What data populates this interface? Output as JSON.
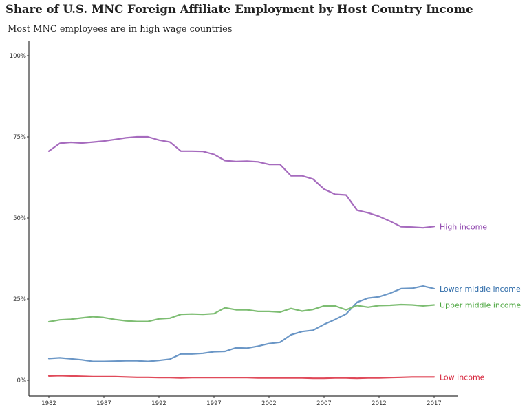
{
  "chart_data": {
    "type": "line",
    "title": "Share of U.S. MNC Foreign Affiliate Employment by Host Country Income",
    "subtitle": "Most MNC employees are in high wage countries",
    "xlabel": "",
    "ylabel": "",
    "xlim": [
      1982,
      2017
    ],
    "ylim": [
      0,
      1
    ],
    "x_ticks": [
      1982,
      1987,
      1992,
      1997,
      2002,
      2007,
      2012,
      2017
    ],
    "y_ticks": [
      0,
      0.25,
      0.5,
      0.75,
      1.0
    ],
    "y_tick_labels": [
      "0%",
      "25%",
      "50%",
      "75%",
      "100%"
    ],
    "grid": false,
    "legend": "direct labels at line ends",
    "x": [
      1982,
      1983,
      1984,
      1985,
      1986,
      1987,
      1988,
      1989,
      1990,
      1991,
      1992,
      1993,
      1994,
      1995,
      1996,
      1997,
      1998,
      1999,
      2000,
      2001,
      2002,
      2003,
      2004,
      2005,
      2006,
      2007,
      2008,
      2009,
      2010,
      2011,
      2012,
      2013,
      2014,
      2015,
      2016,
      2017
    ],
    "series": [
      {
        "name": "High income",
        "color": "#A66BBE",
        "label_color": "#8E44AD",
        "values": [
          0.706,
          0.73,
          0.733,
          0.731,
          0.734,
          0.737,
          0.742,
          0.747,
          0.75,
          0.75,
          0.74,
          0.734,
          0.706,
          0.706,
          0.705,
          0.696,
          0.677,
          0.674,
          0.675,
          0.673,
          0.665,
          0.665,
          0.63,
          0.63,
          0.62,
          0.589,
          0.573,
          0.571,
          0.524,
          0.516,
          0.505,
          0.49,
          0.473,
          0.472,
          0.47,
          0.474
        ]
      },
      {
        "name": "Lower middle income",
        "color": "#6A96C6",
        "label_color": "#2E6BA8",
        "values": [
          0.067,
          0.069,
          0.066,
          0.063,
          0.058,
          0.058,
          0.059,
          0.06,
          0.06,
          0.058,
          0.061,
          0.065,
          0.081,
          0.081,
          0.083,
          0.088,
          0.089,
          0.1,
          0.099,
          0.105,
          0.113,
          0.117,
          0.14,
          0.15,
          0.154,
          0.172,
          0.187,
          0.204,
          0.24,
          0.253,
          0.257,
          0.268,
          0.282,
          0.283,
          0.29,
          0.282
        ]
      },
      {
        "name": "Upper middle income",
        "color": "#7DBD72",
        "label_color": "#4CA63F",
        "values": [
          0.18,
          0.186,
          0.188,
          0.192,
          0.196,
          0.193,
          0.187,
          0.183,
          0.181,
          0.181,
          0.189,
          0.191,
          0.203,
          0.204,
          0.203,
          0.205,
          0.223,
          0.217,
          0.217,
          0.212,
          0.212,
          0.21,
          0.221,
          0.213,
          0.218,
          0.229,
          0.229,
          0.217,
          0.23,
          0.225,
          0.23,
          0.231,
          0.233,
          0.232,
          0.229,
          0.232
        ]
      },
      {
        "name": "Low income",
        "color": "#E04A5A",
        "label_color": "#D7263D",
        "values": [
          0.013,
          0.014,
          0.013,
          0.012,
          0.011,
          0.011,
          0.011,
          0.01,
          0.009,
          0.009,
          0.008,
          0.008,
          0.007,
          0.008,
          0.008,
          0.008,
          0.008,
          0.008,
          0.008,
          0.007,
          0.007,
          0.007,
          0.007,
          0.007,
          0.006,
          0.006,
          0.007,
          0.007,
          0.006,
          0.007,
          0.007,
          0.008,
          0.009,
          0.01,
          0.01,
          0.01
        ]
      }
    ]
  }
}
